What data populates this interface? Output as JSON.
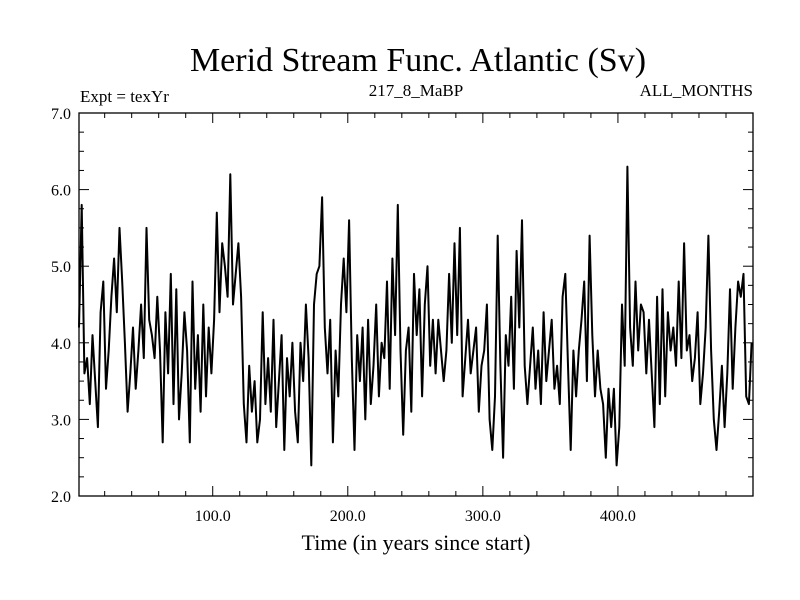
{
  "chart_data": {
    "type": "line",
    "title": "Merid Stream Func. Atlantic (Sv)",
    "subtitle_left": "Expt = texYr",
    "subtitle_center": "217_8_MaBP",
    "subtitle_right": "ALL_MONTHS",
    "xlabel": "Time (in years since start)",
    "ylabel": "",
    "xlim": [
      1,
      500
    ],
    "ylim": [
      2.0,
      7.0
    ],
    "x_ticks": [
      100,
      200,
      300,
      400
    ],
    "x_tick_labels": [
      "100.0",
      "200.0",
      "300.0",
      "400.0"
    ],
    "y_ticks": [
      2,
      3,
      4,
      5,
      6,
      7
    ],
    "y_tick_labels": [
      "2.0",
      "3.0",
      "4.0",
      "5.0",
      "6.0",
      "7.0"
    ],
    "line_color": "#000000",
    "series": [
      {
        "x": [
          1,
          3,
          5,
          7,
          9,
          11,
          13,
          15,
          17,
          19,
          21,
          23,
          25,
          27,
          29,
          31,
          33,
          35,
          37,
          39,
          41,
          43,
          45,
          47,
          49,
          51,
          53,
          55,
          57,
          59,
          61,
          63,
          65,
          67,
          69,
          71,
          73,
          75,
          77,
          79,
          81,
          83,
          85,
          87,
          89,
          91,
          93,
          95,
          97,
          99,
          101,
          103,
          105,
          107,
          109,
          111,
          113,
          115,
          117,
          119,
          121,
          123,
          125,
          127,
          129,
          131,
          133,
          135,
          137,
          139,
          141,
          143,
          145,
          147,
          149,
          151,
          153,
          155,
          157,
          159,
          161,
          163,
          165,
          167,
          169,
          171,
          173,
          175,
          177,
          179,
          181,
          183,
          185,
          187,
          189,
          191,
          193,
          195,
          197,
          199,
          201,
          203,
          205,
          207,
          209,
          211,
          213,
          215,
          217,
          219,
          221,
          223,
          225,
          227,
          229,
          231,
          233,
          235,
          237,
          239,
          241,
          243,
          245,
          247,
          249,
          251,
          253,
          255,
          257,
          259,
          261,
          263,
          265,
          267,
          269,
          271,
          273,
          275,
          277,
          279,
          281,
          283,
          285,
          287,
          289,
          291,
          293,
          295,
          297,
          299,
          301,
          303,
          305,
          307,
          309,
          311,
          313,
          315,
          317,
          319,
          321,
          323,
          325,
          327,
          329,
          331,
          333,
          335,
          337,
          339,
          341,
          343,
          345,
          347,
          349,
          351,
          353,
          355,
          357,
          359,
          361,
          363,
          365,
          367,
          369,
          371,
          373,
          375,
          377,
          379,
          381,
          383,
          385,
          387,
          389,
          391,
          393,
          395,
          397,
          399,
          401,
          403,
          405,
          407,
          409,
          411,
          413,
          415,
          417,
          419,
          421,
          423,
          425,
          427,
          429,
          431,
          433,
          435,
          437,
          439,
          441,
          443,
          445,
          447,
          449,
          451,
          453,
          455,
          457,
          459,
          461,
          463,
          465,
          467,
          469,
          471,
          473,
          475,
          477,
          479,
          481,
          483,
          485,
          487,
          489,
          491,
          493,
          495,
          497,
          499
        ],
        "y": [
          4.2,
          5.8,
          3.6,
          3.8,
          3.2,
          4.1,
          3.5,
          2.9,
          4.4,
          4.8,
          3.4,
          3.9,
          4.6,
          5.1,
          4.4,
          5.5,
          4.8,
          4.0,
          3.1,
          3.6,
          4.2,
          3.4,
          3.9,
          4.5,
          3.8,
          5.5,
          4.3,
          4.1,
          3.8,
          4.6,
          3.9,
          2.7,
          4.4,
          3.6,
          4.9,
          3.2,
          4.7,
          3.0,
          3.6,
          4.4,
          3.9,
          2.7,
          4.8,
          3.4,
          4.1,
          3.1,
          4.5,
          3.3,
          4.2,
          3.6,
          4.3,
          5.7,
          4.4,
          5.3,
          5.0,
          4.6,
          6.2,
          4.5,
          4.9,
          5.3,
          4.6,
          3.2,
          2.7,
          3.7,
          3.1,
          3.5,
          2.7,
          3.0,
          4.4,
          3.2,
          3.8,
          3.1,
          4.3,
          2.9,
          3.5,
          4.1,
          2.6,
          3.8,
          3.3,
          4.0,
          3.1,
          2.7,
          4.0,
          3.5,
          4.5,
          3.8,
          2.4,
          4.5,
          4.9,
          5.0,
          5.9,
          4.2,
          3.6,
          4.3,
          2.7,
          3.9,
          3.3,
          4.5,
          5.1,
          4.4,
          5.6,
          3.8,
          2.6,
          4.1,
          3.5,
          4.2,
          3.0,
          4.3,
          3.2,
          3.7,
          4.5,
          3.3,
          4.0,
          3.8,
          4.8,
          3.4,
          5.1,
          4.1,
          5.8,
          3.9,
          2.8,
          3.9,
          4.2,
          3.1,
          4.9,
          4.1,
          4.7,
          3.3,
          4.5,
          5.0,
          3.7,
          4.3,
          3.6,
          4.3,
          3.9,
          3.5,
          3.9,
          4.9,
          4.0,
          5.3,
          4.1,
          5.5,
          3.3,
          3.8,
          4.3,
          3.6,
          3.9,
          4.2,
          3.1,
          3.7,
          3.9,
          4.5,
          3.0,
          2.6,
          3.3,
          5.4,
          3.7,
          2.5,
          4.1,
          3.7,
          4.6,
          3.4,
          5.2,
          4.2,
          5.6,
          3.7,
          3.2,
          3.7,
          4.2,
          3.4,
          3.9,
          3.2,
          4.4,
          3.5,
          3.9,
          4.3,
          3.4,
          3.7,
          3.2,
          4.6,
          4.9,
          3.7,
          2.6,
          3.9,
          3.3,
          3.9,
          4.3,
          4.8,
          3.5,
          5.4,
          4.1,
          3.3,
          3.9,
          3.4,
          3.2,
          2.5,
          3.4,
          2.9,
          3.4,
          2.4,
          2.9,
          4.5,
          3.7,
          6.3,
          4.2,
          3.7,
          4.8,
          3.9,
          4.5,
          4.4,
          3.6,
          4.3,
          3.6,
          2.9,
          4.6,
          3.2,
          4.7,
          3.3,
          4.4,
          3.9,
          4.2,
          3.7,
          4.8,
          3.8,
          5.3,
          3.9,
          4.1,
          3.5,
          3.8,
          4.4,
          3.2,
          3.6,
          4.2,
          5.4,
          3.9,
          3.0,
          2.6,
          3.1,
          3.7,
          2.9,
          3.6,
          4.7,
          3.4,
          4.2,
          4.8,
          4.6,
          4.9,
          3.3,
          3.2,
          4.0
        ]
      }
    ]
  }
}
